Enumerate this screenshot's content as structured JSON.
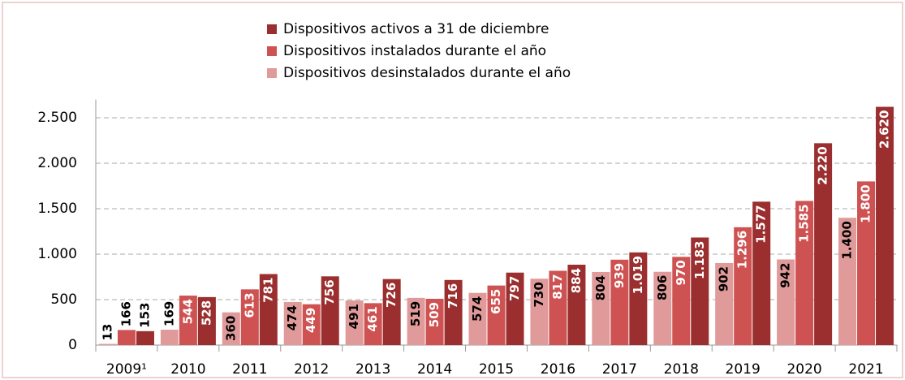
{
  "chart_data": {
    "type": "bar",
    "categories": [
      "2009¹",
      "2010",
      "2011",
      "2012",
      "2013",
      "2014",
      "2015",
      "2016",
      "2017",
      "2018",
      "2019",
      "2020",
      "2021"
    ],
    "series": [
      {
        "name": "Dispositivos desinstalados durante el año",
        "color": "#e09a9a",
        "values": [
          13,
          169,
          360,
          474,
          491,
          519,
          574,
          730,
          804,
          806,
          902,
          942,
          1400
        ],
        "value_labels": [
          "13",
          "169",
          "360",
          "474",
          "491",
          "519",
          "574",
          "730",
          "804",
          "806",
          "902",
          "942",
          "1.400"
        ]
      },
      {
        "name": "Dispositivos instalados durante el año",
        "color": "#cf5252",
        "values": [
          166,
          544,
          613,
          449,
          461,
          509,
          655,
          817,
          939,
          970,
          1296,
          1585,
          1800
        ],
        "value_labels": [
          "166",
          "544",
          "613",
          "449",
          "461",
          "509",
          "655",
          "817",
          "939",
          "970",
          "1.296",
          "1.585",
          "1.800"
        ]
      },
      {
        "name": "Dispositivos activos a 31 de diciembre",
        "color": "#9b2f2f",
        "values": [
          153,
          528,
          781,
          756,
          726,
          716,
          797,
          884,
          1019,
          1183,
          1577,
          2220,
          2620
        ],
        "value_labels": [
          "153",
          "528",
          "781",
          "756",
          "726",
          "716",
          "797",
          "884",
          "1.019",
          "1.183",
          "1.577",
          "2.220",
          "2.620"
        ]
      }
    ],
    "ylim": [
      0,
      2700
    ],
    "yticks": [
      0,
      500,
      {
        "value": 1000,
        "label": "1.000"
      },
      {
        "value": 1500,
        "label": "1.500"
      },
      {
        "value": 2000,
        "label": "2.000"
      },
      {
        "value": 2500,
        "label": "2.500"
      }
    ],
    "grid": true,
    "legend": "top"
  }
}
